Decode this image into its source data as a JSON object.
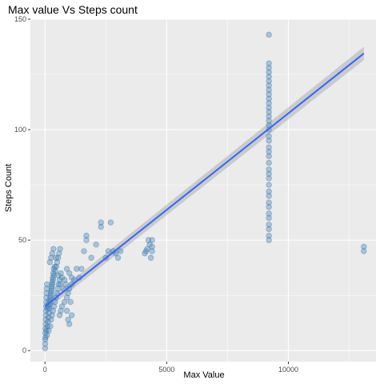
{
  "chart_data": {
    "type": "scatter",
    "title": "Max value Vs Steps count",
    "xlabel": "Max Value",
    "ylabel": "Steps Count",
    "xlim": [
      -600,
      13600
    ],
    "ylim": [
      -5,
      150
    ],
    "xticks": [
      0,
      5000,
      10000
    ],
    "xtick_labels": [
      "0",
      "5000",
      "10000"
    ],
    "yticks": [
      0,
      50,
      100,
      150
    ],
    "ytick_labels": [
      "0",
      "50",
      "100",
      "150"
    ],
    "grid": true,
    "legend": "none",
    "colors": {
      "panel_bg": "#EBEBEB",
      "grid_major": "#FFFFFF",
      "point_fill": "#4682B4",
      "point_stroke": "#4682B4",
      "trend_line": "#3366FF",
      "ci_band": "#999999",
      "axis_text": "#4D4D4D",
      "title_text": "#000000"
    },
    "points": [
      [
        5,
        1
      ],
      [
        8,
        3
      ],
      [
        12,
        5
      ],
      [
        15,
        8
      ],
      [
        20,
        10
      ],
      [
        25,
        12
      ],
      [
        30,
        14
      ],
      [
        35,
        16
      ],
      [
        40,
        18
      ],
      [
        45,
        20
      ],
      [
        50,
        22
      ],
      [
        55,
        24
      ],
      [
        60,
        26
      ],
      [
        70,
        28
      ],
      [
        80,
        30
      ],
      [
        20,
        6
      ],
      [
        50,
        9
      ],
      [
        100,
        11
      ],
      [
        120,
        13
      ],
      [
        140,
        15
      ],
      [
        160,
        17
      ],
      [
        180,
        19
      ],
      [
        200,
        21
      ],
      [
        220,
        23
      ],
      [
        240,
        25
      ],
      [
        260,
        27
      ],
      [
        280,
        29
      ],
      [
        300,
        31
      ],
      [
        320,
        33
      ],
      [
        340,
        35
      ],
      [
        360,
        37
      ],
      [
        100,
        19
      ],
      [
        150,
        20
      ],
      [
        180,
        22
      ],
      [
        210,
        24
      ],
      [
        240,
        26
      ],
      [
        270,
        28
      ],
      [
        300,
        30
      ],
      [
        330,
        32
      ],
      [
        360,
        34
      ],
      [
        80,
        7
      ],
      [
        150,
        9
      ],
      [
        220,
        11
      ],
      [
        250,
        14
      ],
      [
        290,
        16
      ],
      [
        330,
        18
      ],
      [
        370,
        20
      ],
      [
        410,
        22
      ],
      [
        450,
        24
      ],
      [
        490,
        26
      ],
      [
        520,
        28
      ],
      [
        560,
        30
      ],
      [
        600,
        32
      ],
      [
        420,
        36
      ],
      [
        460,
        38
      ],
      [
        500,
        40
      ],
      [
        540,
        42
      ],
      [
        580,
        44
      ],
      [
        620,
        46
      ],
      [
        550,
        34
      ],
      [
        620,
        30
      ],
      [
        650,
        35
      ],
      [
        700,
        33
      ],
      [
        750,
        28
      ],
      [
        800,
        32
      ],
      [
        850,
        30
      ],
      [
        900,
        24
      ],
      [
        950,
        26
      ],
      [
        1000,
        28
      ],
      [
        1050,
        22
      ],
      [
        1100,
        30
      ],
      [
        900,
        37
      ],
      [
        1000,
        35
      ],
      [
        1100,
        33
      ],
      [
        1200,
        32
      ],
      [
        700,
        20
      ],
      [
        800,
        22
      ],
      [
        900,
        18
      ],
      [
        950,
        14
      ],
      [
        1000,
        12
      ],
      [
        1100,
        16
      ],
      [
        600,
        16
      ],
      [
        650,
        18
      ],
      [
        200,
        40
      ],
      [
        250,
        42
      ],
      [
        300,
        44
      ],
      [
        350,
        46
      ],
      [
        400,
        38
      ],
      [
        450,
        42
      ],
      [
        1300,
        37
      ],
      [
        1400,
        33
      ],
      [
        1500,
        37
      ],
      [
        1600,
        45
      ],
      [
        1700,
        50
      ],
      [
        1700,
        52
      ],
      [
        1900,
        42
      ],
      [
        2100,
        48
      ],
      [
        2300,
        56
      ],
      [
        2300,
        58
      ],
      [
        2600,
        45
      ],
      [
        2700,
        58
      ],
      [
        2800,
        45
      ],
      [
        2900,
        44
      ],
      [
        3000,
        42
      ],
      [
        3100,
        45
      ],
      [
        2500,
        42
      ],
      [
        4100,
        44
      ],
      [
        4150,
        45
      ],
      [
        4200,
        46
      ],
      [
        4250,
        50
      ],
      [
        4300,
        48
      ],
      [
        4350,
        42
      ],
      [
        4400,
        45
      ],
      [
        4400,
        47
      ],
      [
        4400,
        50
      ],
      [
        9200,
        50
      ],
      [
        9200,
        52
      ],
      [
        9200,
        55
      ],
      [
        9200,
        57
      ],
      [
        9200,
        60
      ],
      [
        9200,
        62
      ],
      [
        9200,
        65
      ],
      [
        9200,
        67
      ],
      [
        9200,
        70
      ],
      [
        9200,
        72
      ],
      [
        9200,
        75
      ],
      [
        9200,
        78
      ],
      [
        9200,
        80
      ],
      [
        9200,
        82
      ],
      [
        9200,
        85
      ],
      [
        9200,
        88
      ],
      [
        9200,
        90
      ],
      [
        9200,
        92
      ],
      [
        9200,
        95
      ],
      [
        9200,
        97
      ],
      [
        9200,
        100
      ],
      [
        9200,
        102
      ],
      [
        9200,
        104
      ],
      [
        9200,
        106
      ],
      [
        9200,
        108
      ],
      [
        9200,
        110
      ],
      [
        9200,
        112
      ],
      [
        9200,
        114
      ],
      [
        9200,
        116
      ],
      [
        9200,
        118
      ],
      [
        9200,
        120
      ],
      [
        9200,
        122
      ],
      [
        9200,
        124
      ],
      [
        9200,
        126
      ],
      [
        9200,
        128
      ],
      [
        9200,
        130
      ],
      [
        9200,
        143
      ],
      [
        13100,
        45
      ],
      [
        13100,
        47
      ]
    ],
    "trend": {
      "x": [
        0,
        13100
      ],
      "y": [
        20,
        134.5
      ],
      "ci_lower": [
        18,
        131.5
      ],
      "ci_upper": [
        22,
        137.5
      ]
    }
  }
}
